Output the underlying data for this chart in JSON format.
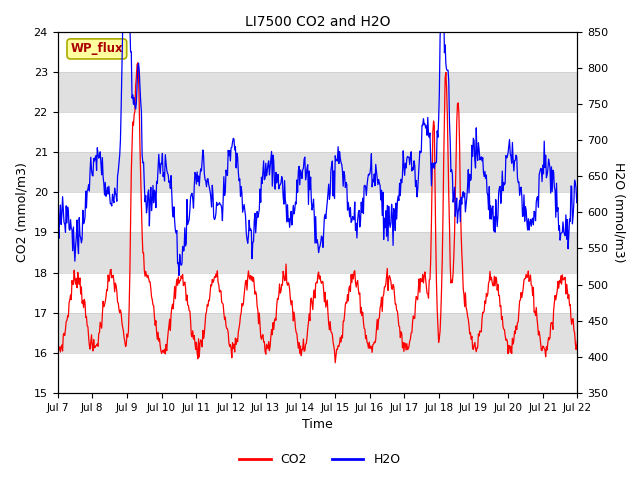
{
  "title": "LI7500 CO2 and H2O",
  "xlabel": "Time",
  "ylabel_left": "CO2 (mmol/m3)",
  "ylabel_right": "H2O (mmol/m3)",
  "ylim_left": [
    15.0,
    24.0
  ],
  "ylim_right": [
    350,
    850
  ],
  "annotation": "WP_flux",
  "x_labels": [
    "Jul 7",
    "Jul 8",
    "Jul 9",
    "Jul 10",
    "Jul 11",
    "Jul 12",
    "Jul 13",
    "Jul 14",
    "Jul 15",
    "Jul 16",
    "Jul 17",
    "Jul 18",
    "Jul 19",
    "Jul 20",
    "Jul 21",
    "Jul 22"
  ],
  "co2_color": "#FF0000",
  "h2o_color": "#0000FF",
  "bg_color": "#FFFFFF",
  "stripe_color": "#E0E0E0",
  "legend_co2": "CO2",
  "legend_h2o": "H2O",
  "annotation_text_color": "#AA0000",
  "annotation_bg": "#FFFFA0",
  "annotation_edge": "#AAAA00"
}
